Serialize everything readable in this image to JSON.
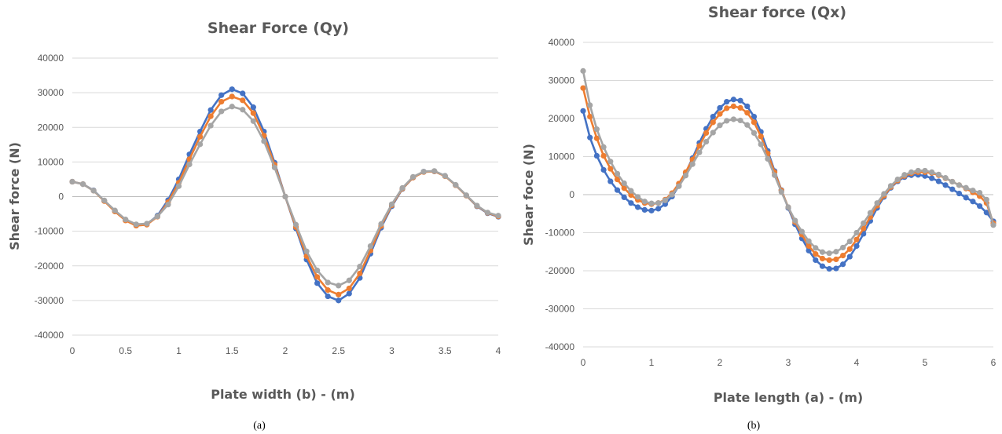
{
  "chart_data": [
    {
      "type": "line",
      "caption": "(a)",
      "title": "Shear Force (Qy)",
      "xlabel": "Plate width (b) - (m)",
      "ylabel": "Shear force (N)",
      "xlim": [
        0,
        4
      ],
      "ylim": [
        -40000,
        40000
      ],
      "xticks": [
        0,
        0.5,
        1,
        1.5,
        2,
        2.5,
        3,
        3.5,
        4
      ],
      "xtick_labels": [
        "0",
        "0.5",
        "1",
        "1.5",
        "2",
        "2.5",
        "3",
        "3.5",
        "4"
      ],
      "yticks": [
        40000,
        30000,
        20000,
        10000,
        0,
        -10000,
        -20000,
        -30000,
        -40000
      ],
      "ytick_labels": [
        "40000",
        "30000",
        "20000",
        "10000",
        "0",
        "-10000",
        "-20000",
        "-30000",
        "-40000"
      ],
      "grid": true,
      "x": [
        0,
        0.1,
        0.2,
        0.3,
        0.4,
        0.5,
        0.6,
        0.7,
        0.8,
        0.9,
        1.0,
        1.1,
        1.2,
        1.3,
        1.4,
        1.5,
        1.6,
        1.7,
        1.8,
        1.9,
        2.0,
        2.1,
        2.2,
        2.3,
        2.4,
        2.5,
        2.6,
        2.7,
        2.8,
        2.9,
        3.0,
        3.1,
        3.2,
        3.3,
        3.4,
        3.5,
        3.6,
        3.7,
        3.8,
        3.9,
        4.0
      ],
      "series": [
        {
          "color": "#4472C4",
          "values": [
            4300,
            3600,
            1800,
            -1200,
            -4200,
            -6800,
            -8200,
            -8000,
            -5500,
            -1000,
            5000,
            12200,
            18800,
            25000,
            29300,
            31000,
            29800,
            25800,
            18800,
            9800,
            0,
            -9200,
            -18200,
            -25000,
            -28800,
            -30000,
            -28000,
            -23500,
            -16500,
            -9000,
            -2800,
            2200,
            5500,
            7200,
            7300,
            6000,
            3300,
            300,
            -2800,
            -4800,
            -5800
          ]
        },
        {
          "color": "#ED7D31",
          "values": [
            4300,
            3600,
            1700,
            -1300,
            -4300,
            -6900,
            -8400,
            -8100,
            -5800,
            -1600,
            4000,
            10800,
            17300,
            23200,
            27400,
            28900,
            27800,
            24100,
            17600,
            9200,
            0,
            -8800,
            -17200,
            -23200,
            -27000,
            -28300,
            -26500,
            -22200,
            -15600,
            -8500,
            -2500,
            2300,
            5500,
            7100,
            7300,
            5900,
            3300,
            300,
            -2700,
            -4700,
            -5700
          ]
        },
        {
          "color": "#A5A5A5",
          "values": [
            4300,
            3600,
            1700,
            -1100,
            -4000,
            -6600,
            -8000,
            -7800,
            -5700,
            -2300,
            3000,
            9300,
            15100,
            20500,
            24600,
            26000,
            25100,
            21800,
            16000,
            8400,
            0,
            -8100,
            -15800,
            -21300,
            -24800,
            -25700,
            -24200,
            -20200,
            -14300,
            -7900,
            -2200,
            2500,
            5700,
            7200,
            7400,
            6000,
            3400,
            400,
            -2600,
            -4600,
            -5500
          ]
        }
      ]
    },
    {
      "type": "line",
      "caption": "(b)",
      "title": "Shear force (Qx)",
      "xlabel": "Plate length (a) - (m)",
      "ylabel": "Shear foce (N)",
      "xlim": [
        0,
        6
      ],
      "ylim": [
        -40000,
        40000
      ],
      "xticks": [
        0,
        1,
        2,
        3,
        4,
        5,
        6
      ],
      "xtick_labels": [
        "0",
        "1",
        "2",
        "3",
        "4",
        "5",
        "6"
      ],
      "yticks": [
        40000,
        30000,
        20000,
        10000,
        0,
        -10000,
        -20000,
        -30000,
        -40000
      ],
      "ytick_labels": [
        "40000",
        "30000",
        "20000",
        "10000",
        "0",
        "-10000",
        "-20000",
        "-30000",
        "-40000"
      ],
      "grid": true,
      "x": [
        0,
        0.1,
        0.2,
        0.3,
        0.4,
        0.5,
        0.6,
        0.7,
        0.8,
        0.9,
        1.0,
        1.1,
        1.2,
        1.3,
        1.4,
        1.5,
        1.6,
        1.7,
        1.8,
        1.9,
        2.0,
        2.1,
        2.2,
        2.3,
        2.4,
        2.5,
        2.6,
        2.7,
        2.8,
        2.9,
        3.0,
        3.1,
        3.2,
        3.3,
        3.4,
        3.5,
        3.6,
        3.7,
        3.8,
        3.9,
        4.0,
        4.1,
        4.2,
        4.3,
        4.4,
        4.5,
        4.6,
        4.7,
        4.8,
        4.9,
        5.0,
        5.1,
        5.2,
        5.3,
        5.4,
        5.5,
        5.6,
        5.7,
        5.8,
        5.9,
        6.0
      ],
      "series": [
        {
          "color": "#4472C4",
          "values": [
            22000,
            15000,
            10200,
            6500,
            3500,
            1200,
            -700,
            -2200,
            -3300,
            -4000,
            -4200,
            -3700,
            -2500,
            -500,
            2300,
            5700,
            9600,
            13600,
            17300,
            20500,
            22800,
            24400,
            25000,
            24700,
            23200,
            20500,
            16500,
            11500,
            6200,
            1200,
            -3500,
            -7800,
            -11500,
            -14700,
            -17200,
            -18800,
            -19500,
            -19400,
            -18300,
            -16300,
            -13500,
            -10300,
            -6900,
            -3500,
            -600,
            1800,
            3500,
            4600,
            5100,
            5200,
            4900,
            4300,
            3500,
            2500,
            1400,
            300,
            -800,
            -1800,
            -3000,
            -4700,
            -7000
          ]
        },
        {
          "color": "#ED7D31",
          "values": [
            28000,
            20500,
            14800,
            10200,
            6800,
            4000,
            1700,
            -100,
            -1400,
            -2200,
            -2500,
            -2200,
            -1300,
            400,
            2900,
            5900,
            9200,
            12800,
            16200,
            19000,
            21200,
            22700,
            23200,
            22800,
            21500,
            19000,
            15300,
            10800,
            5900,
            1100,
            -3300,
            -7200,
            -10500,
            -13500,
            -15600,
            -16800,
            -17200,
            -17000,
            -16000,
            -14300,
            -11800,
            -8900,
            -5900,
            -2900,
            -300,
            2000,
            3700,
            4900,
            5600,
            5900,
            5900,
            5700,
            5100,
            4300,
            3400,
            2500,
            1600,
            600,
            -400,
            -2200,
            -7500
          ]
        },
        {
          "color": "#A5A5A5",
          "values": [
            32500,
            23500,
            17200,
            12500,
            8700,
            5500,
            3000,
            1000,
            -600,
            -1800,
            -2300,
            -2200,
            -1500,
            0,
            2200,
            5000,
            8000,
            11100,
            13900,
            16300,
            18200,
            19400,
            19800,
            19500,
            18300,
            16200,
            13200,
            9400,
            5100,
            700,
            -3300,
            -6800,
            -9700,
            -12200,
            -14000,
            -15100,
            -15400,
            -15000,
            -13900,
            -12300,
            -10000,
            -7500,
            -4800,
            -2200,
            200,
            2300,
            4000,
            5200,
            5900,
            6300,
            6300,
            5900,
            5300,
            4400,
            3400,
            2500,
            1800,
            1100,
            500,
            -1300,
            -8000
          ]
        }
      ]
    }
  ]
}
